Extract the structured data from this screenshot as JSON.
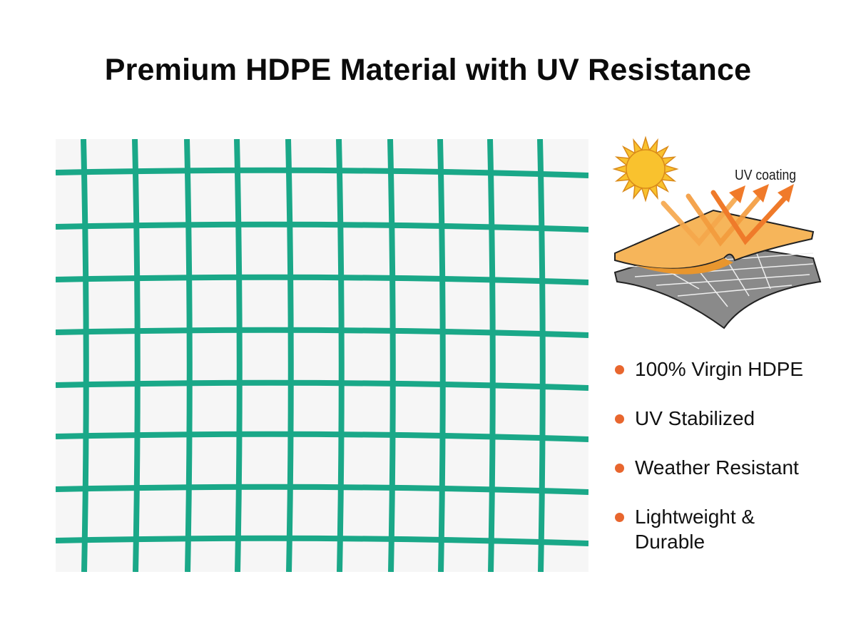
{
  "title": "Premium HDPE Material with UV Resistance",
  "net_image": {
    "color": "#1aa888",
    "background": "#f6f6f6"
  },
  "illustration": {
    "label": "UV coating",
    "icons": [
      "sun-icon",
      "uv-coating-layer-icon",
      "reflected-arrow-icon"
    ],
    "colors": {
      "sun": "#f9c22e",
      "coating": "#f6b55a",
      "arrows": "#f07a2a",
      "base": "#8a8a8a"
    }
  },
  "features": [
    {
      "label": "100% Virgin HDPE"
    },
    {
      "label": "UV Stabilized"
    },
    {
      "label": "Weather Resistant"
    },
    {
      "label": "Lightweight & Durable"
    }
  ],
  "accent_color": "#e8662e"
}
